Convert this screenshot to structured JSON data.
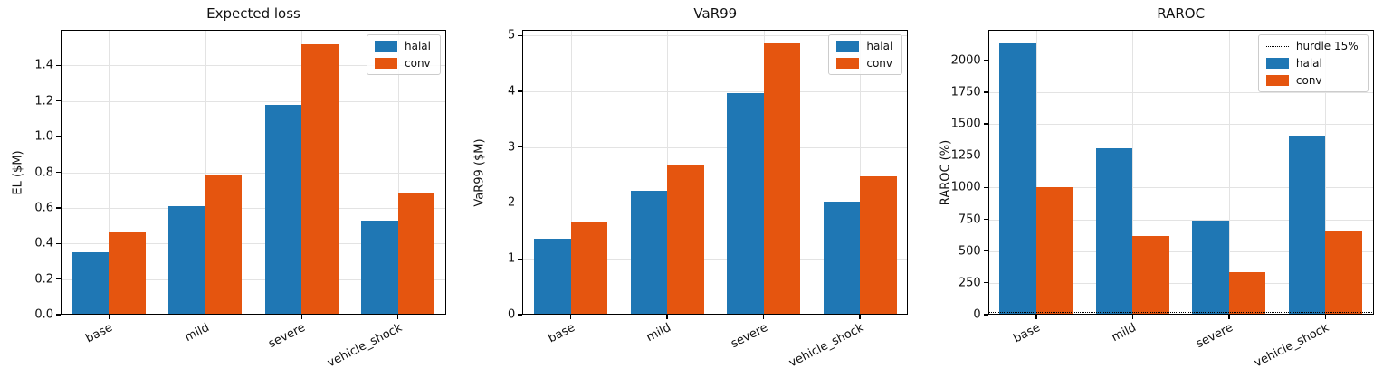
{
  "colors": {
    "halal": "#1f77b4",
    "conv": "#e5550f",
    "hurdle": "#000000",
    "grid": "#e3e3e3",
    "text": "#111111",
    "background": "#ffffff"
  },
  "chart_data": [
    {
      "type": "bar",
      "title": "Expected loss",
      "xlabel": "",
      "ylabel": "EL ($M)",
      "categories": [
        "base",
        "mild",
        "severe",
        "vehicle_shock"
      ],
      "series": [
        {
          "name": "halal",
          "values": [
            0.35,
            0.61,
            1.18,
            0.53
          ]
        },
        {
          "name": "conv",
          "values": [
            0.46,
            0.78,
            1.52,
            0.68
          ]
        }
      ],
      "ylim": [
        0,
        1.6
      ],
      "yticks": [
        0.0,
        0.2,
        0.4,
        0.6,
        0.8,
        1.0,
        1.2,
        1.4
      ],
      "ytick_labels": [
        "0.0",
        "0.2",
        "0.4",
        "0.6",
        "0.8",
        "1.0",
        "1.2",
        "1.4"
      ],
      "grid": true,
      "legend_position": "upper right",
      "legend": [
        {
          "label": "halal",
          "swatch": "patch",
          "series": "halal"
        },
        {
          "label": "conv",
          "swatch": "patch",
          "series": "conv"
        }
      ]
    },
    {
      "type": "bar",
      "title": "VaR99",
      "xlabel": "",
      "ylabel": "VaR99 ($M)",
      "categories": [
        "base",
        "mild",
        "severe",
        "vehicle_shock"
      ],
      "series": [
        {
          "name": "halal",
          "values": [
            1.36,
            2.22,
            3.96,
            2.03
          ]
        },
        {
          "name": "conv",
          "values": [
            1.65,
            2.69,
            4.85,
            2.48
          ]
        }
      ],
      "ylim": [
        0,
        5.1
      ],
      "yticks": [
        0,
        1,
        2,
        3,
        4,
        5
      ],
      "ytick_labels": [
        "0",
        "1",
        "2",
        "3",
        "4",
        "5"
      ],
      "grid": true,
      "legend_position": "upper right",
      "legend": [
        {
          "label": "halal",
          "swatch": "patch",
          "series": "halal"
        },
        {
          "label": "conv",
          "swatch": "patch",
          "series": "conv"
        }
      ]
    },
    {
      "type": "bar",
      "title": "RAROC",
      "xlabel": "",
      "ylabel": "RAROC (%)",
      "categories": [
        "base",
        "mild",
        "severe",
        "vehicle_shock"
      ],
      "series": [
        {
          "name": "halal",
          "values": [
            2130,
            1310,
            740,
            1410
          ]
        },
        {
          "name": "conv",
          "values": [
            1000,
            620,
            335,
            655
          ]
        }
      ],
      "ylim": [
        0,
        2240
      ],
      "yticks": [
        0,
        250,
        500,
        750,
        1000,
        1250,
        1500,
        1750,
        2000
      ],
      "ytick_labels": [
        "0",
        "250",
        "500",
        "750",
        "1000",
        "1250",
        "1500",
        "1750",
        "2000"
      ],
      "grid": true,
      "hurdle": {
        "label": "hurdle 15%",
        "value": 15
      },
      "legend_position": "upper right",
      "legend": [
        {
          "label": "hurdle 15%",
          "swatch": "dotted-line"
        },
        {
          "label": "halal",
          "swatch": "patch",
          "series": "halal"
        },
        {
          "label": "conv",
          "swatch": "patch",
          "series": "conv"
        }
      ]
    }
  ]
}
